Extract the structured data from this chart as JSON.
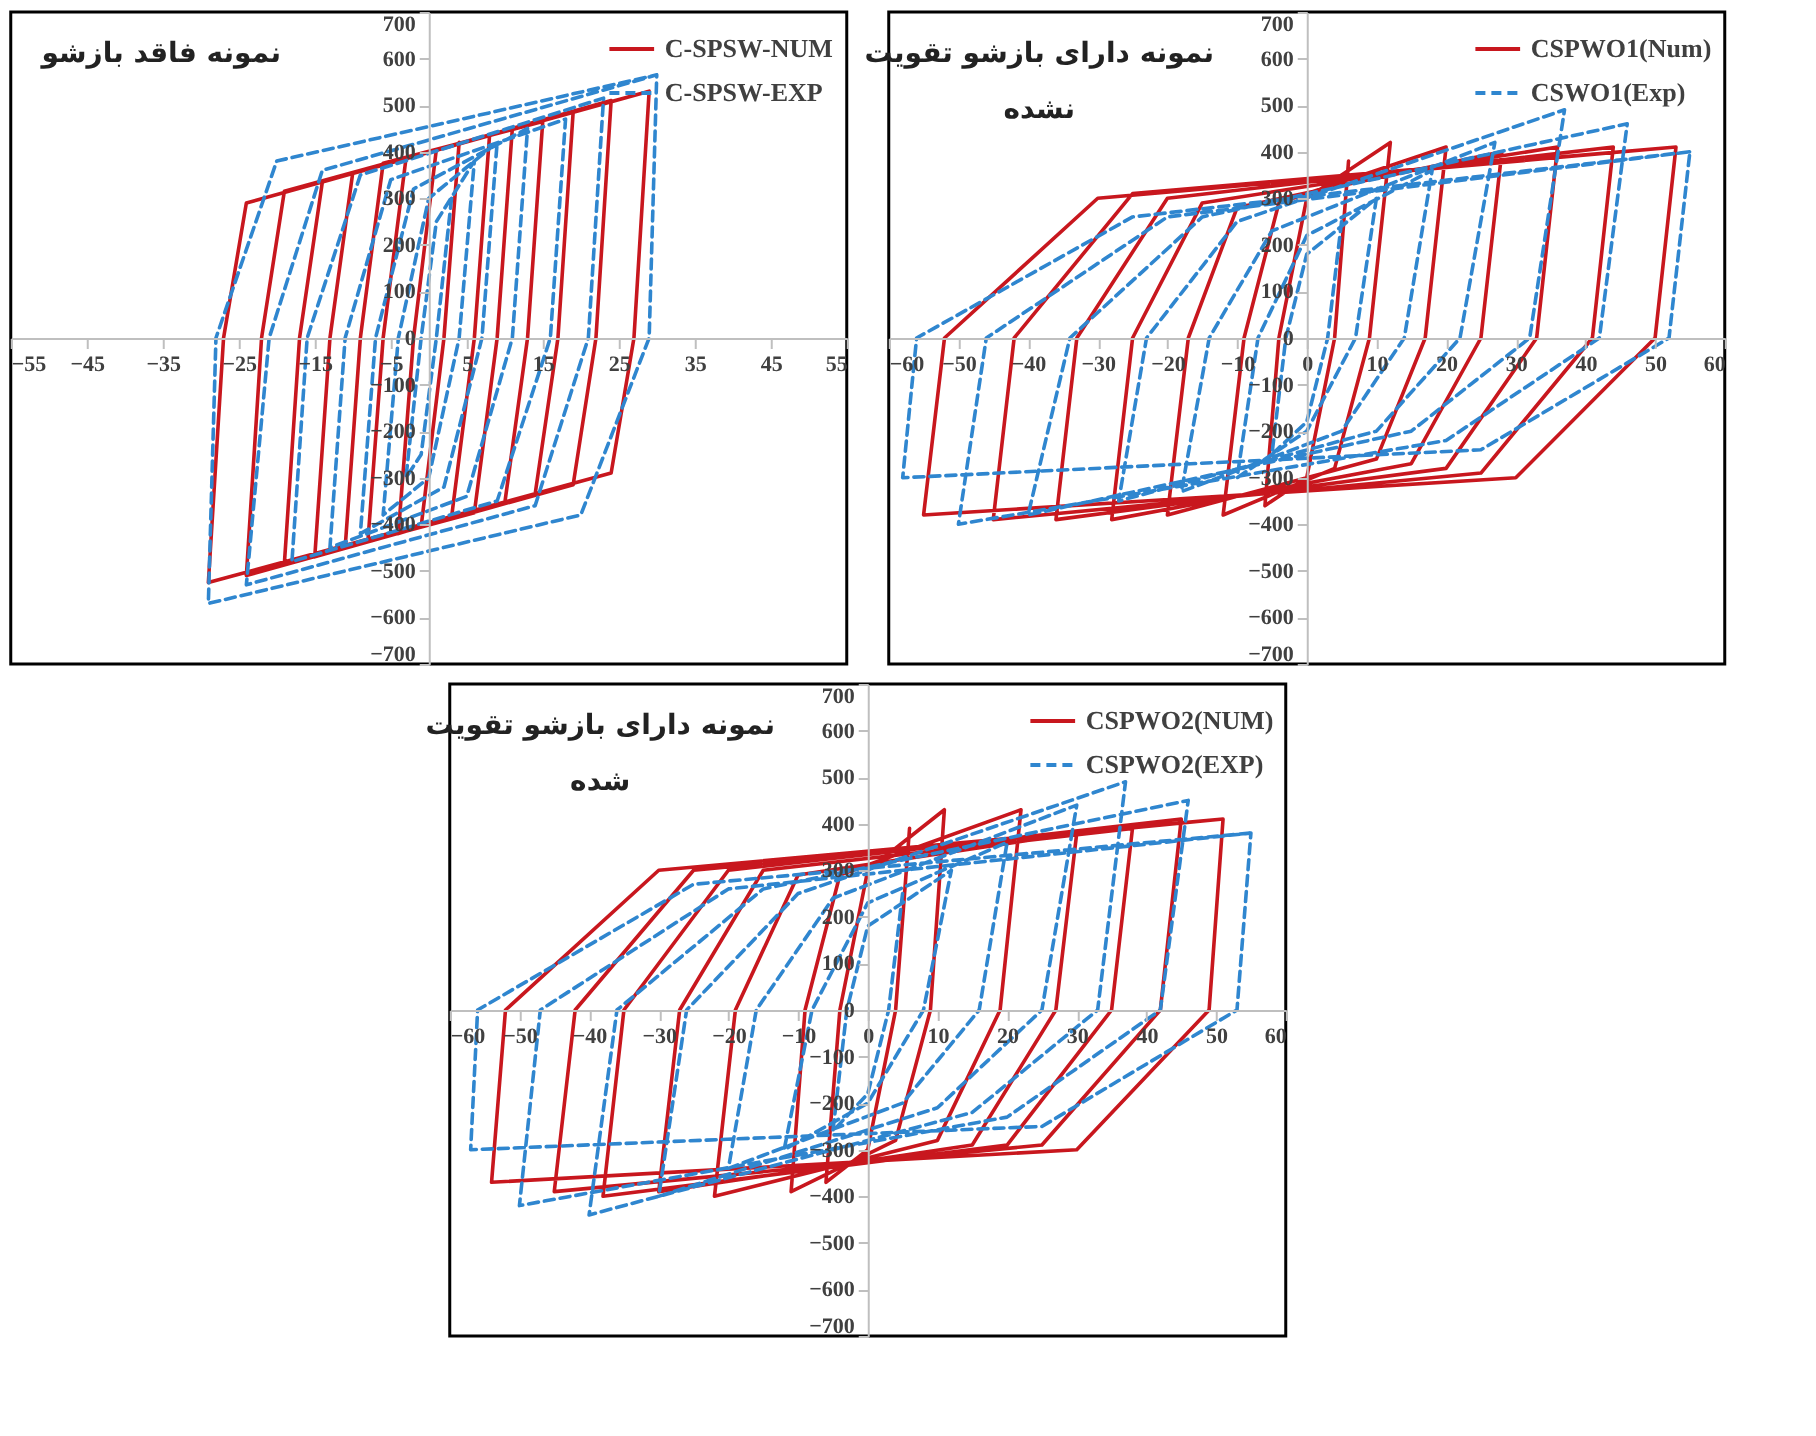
{
  "chart_data": [
    {
      "type": "line",
      "title": "نمونه فاقد بازشو",
      "legend": "top right",
      "xlim": [
        -55,
        55
      ],
      "xticks": [
        -55,
        -45,
        -35,
        -25,
        -15,
        -5,
        5,
        15,
        25,
        35,
        45,
        55
      ],
      "ylim": [
        -700,
        700
      ],
      "yticks": [
        -700,
        -600,
        -500,
        -400,
        -300,
        -200,
        -100,
        0,
        100,
        200,
        300,
        400,
        500,
        600,
        700
      ],
      "grid": false,
      "series": [
        {
          "name": "C-SPSW-NUM",
          "color": "#c8171e",
          "line_style": "solid",
          "x": [
            4,
            2,
            -1,
            -4,
            -2,
            1,
            8,
            6,
            3,
            -8,
            -6,
            -3,
            11,
            9,
            6,
            -11,
            -9,
            -6,
            15,
            13,
            10,
            -15,
            -13,
            -10,
            19,
            17,
            14,
            -19,
            -17,
            -14,
            24,
            22,
            19,
            -24,
            -22,
            -19,
            29,
            27,
            24,
            -29,
            -27,
            -24,
            29
          ],
          "values": [
            420,
            0,
            -405,
            -420,
            0,
            405,
            435,
            0,
            -385,
            -435,
            0,
            385,
            450,
            0,
            -375,
            -450,
            0,
            375,
            465,
            0,
            -355,
            -470,
            0,
            355,
            485,
            0,
            -335,
            -485,
            0,
            335,
            510,
            0,
            -315,
            -510,
            0,
            315,
            530,
            0,
            -290,
            -525,
            0,
            290,
            530
          ]
        },
        {
          "name": "C-SPSW-EXP",
          "color": "#2f86cf",
          "line_style": "dashed",
          "x": [
            3,
            1,
            -1,
            -3,
            -1,
            1,
            6,
            4,
            0,
            -6,
            -4,
            0,
            9,
            7,
            2,
            -9,
            -7,
            -2,
            13,
            11,
            5,
            -13,
            -11,
            -5,
            18,
            16,
            9,
            -18,
            -16,
            -9,
            23,
            21,
            14,
            -24,
            -21,
            -14,
            30,
            29,
            20,
            -29,
            -28,
            -20,
            30
          ],
          "values": [
            300,
            0,
            -250,
            -300,
            0,
            250,
            380,
            0,
            -300,
            -380,
            0,
            300,
            420,
            0,
            -320,
            -420,
            0,
            320,
            450,
            0,
            -340,
            -450,
            0,
            340,
            470,
            0,
            -350,
            -480,
            0,
            350,
            515,
            0,
            -360,
            -530,
            0,
            360,
            565,
            0,
            -380,
            -570,
            0,
            380,
            565
          ]
        }
      ]
    },
    {
      "type": "line",
      "title": "نمونه دارای بازشو تقویت نشده",
      "legend": "top right",
      "xlim": [
        -60,
        60
      ],
      "xticks": [
        -60,
        -50,
        -40,
        -30,
        -20,
        -10,
        0,
        10,
        20,
        30,
        40,
        50,
        60
      ],
      "ylim": [
        -700,
        700
      ],
      "yticks": [
        -700,
        -600,
        -500,
        -400,
        -300,
        -200,
        -100,
        0,
        100,
        200,
        300,
        400,
        500,
        600,
        700
      ],
      "grid": false,
      "series": [
        {
          "name": "CSPWO1(Num)",
          "color": "#c8171e",
          "line_style": "solid",
          "x": [
            6,
            4,
            0,
            -6,
            -4,
            0,
            12,
            9,
            4,
            -12,
            -9,
            -4,
            20,
            17,
            10,
            -20,
            -17,
            -10,
            28,
            25,
            15,
            -28,
            -25,
            -15,
            36,
            33,
            20,
            -36,
            -33,
            -20,
            44,
            41,
            25,
            -45,
            -42,
            -25,
            53,
            50,
            30,
            -55,
            -52,
            -30,
            53
          ],
          "values": [
            380,
            0,
            -300,
            -360,
            0,
            300,
            420,
            0,
            -280,
            -380,
            0,
            290,
            410,
            0,
            -260,
            -380,
            0,
            280,
            400,
            0,
            -270,
            -390,
            0,
            290,
            410,
            0,
            -280,
            -390,
            0,
            300,
            410,
            0,
            -290,
            -390,
            0,
            310,
            410,
            0,
            -300,
            -380,
            0,
            300,
            410
          ]
        },
        {
          "name": "CSWO1(Exp)",
          "color": "#2f86cf",
          "line_style": "dashed",
          "x": [
            5,
            3,
            0,
            -5,
            -3,
            0,
            10,
            7,
            0,
            -10,
            -7,
            0,
            18,
            14,
            5,
            -18,
            -14,
            -5,
            27,
            22,
            10,
            -27,
            -23,
            -10,
            37,
            32,
            15,
            -40,
            -34,
            -15,
            46,
            42,
            20,
            -50,
            -46,
            -20,
            55,
            52,
            25,
            -58,
            -56,
            -25,
            55
          ],
          "values": [
            250,
            0,
            -180,
            -250,
            0,
            180,
            300,
            0,
            -200,
            -300,
            0,
            220,
            360,
            0,
            -200,
            -330,
            0,
            230,
            420,
            0,
            -200,
            -350,
            0,
            250,
            490,
            0,
            -200,
            -380,
            0,
            260,
            460,
            0,
            -220,
            -400,
            0,
            260,
            400,
            0,
            -240,
            -300,
            0,
            260,
            400
          ]
        }
      ]
    },
    {
      "type": "line",
      "title": "نمونه دارای بازشو تقویت شده",
      "legend": "top right",
      "xlim": [
        -60,
        60
      ],
      "xticks": [
        -60,
        -50,
        -40,
        -30,
        -20,
        -10,
        0,
        10,
        20,
        30,
        40,
        50,
        60
      ],
      "ylim": [
        -700,
        700
      ],
      "yticks": [
        -700,
        -600,
        -500,
        -400,
        -300,
        -200,
        -100,
        0,
        100,
        200,
        300,
        400,
        500,
        600,
        700
      ],
      "grid": false,
      "series": [
        {
          "name": "CSPWO2(NUM)",
          "color": "#c8171e",
          "line_style": "solid",
          "x": [
            6,
            4,
            0,
            -6,
            -4,
            0,
            11,
            9,
            4,
            -11,
            -9,
            -4,
            22,
            19,
            10,
            -22,
            -19,
            -10,
            30,
            27,
            15,
            -30,
            -27,
            -15,
            38,
            35,
            20,
            -38,
            -35,
            -20,
            45,
            42,
            25,
            -45,
            -42,
            -25,
            51,
            49,
            30,
            -54,
            -52,
            -30,
            51
          ],
          "values": [
            390,
            0,
            -300,
            -370,
            0,
            300,
            430,
            0,
            -280,
            -390,
            0,
            290,
            430,
            0,
            -280,
            -400,
            0,
            290,
            380,
            0,
            -290,
            -390,
            0,
            300,
            390,
            0,
            -290,
            -400,
            0,
            300,
            410,
            0,
            -290,
            -390,
            0,
            300,
            410,
            0,
            -300,
            -370,
            0,
            300,
            410
          ]
        },
        {
          "name": "CSPWO2(EXP)",
          "color": "#2f86cf",
          "line_style": "dashed",
          "x": [
            5,
            3,
            0,
            -5,
            -3,
            0,
            12,
            8,
            0,
            -12,
            -8,
            0,
            20,
            16,
            5,
            -20,
            -16,
            -5,
            30,
            25,
            10,
            -30,
            -26,
            -10,
            37,
            33,
            15,
            -40,
            -36,
            -15,
            46,
            42,
            20,
            -50,
            -47,
            -20,
            55,
            53,
            25,
            -57,
            -56,
            -25,
            55
          ],
          "values": [
            250,
            0,
            -180,
            -260,
            0,
            180,
            300,
            0,
            -200,
            -300,
            0,
            230,
            360,
            0,
            -200,
            -340,
            0,
            240,
            440,
            0,
            -210,
            -400,
            0,
            250,
            490,
            0,
            -220,
            -440,
            0,
            260,
            450,
            0,
            -230,
            -420,
            0,
            260,
            380,
            0,
            -250,
            -300,
            0,
            270,
            380
          ]
        }
      ]
    }
  ]
}
